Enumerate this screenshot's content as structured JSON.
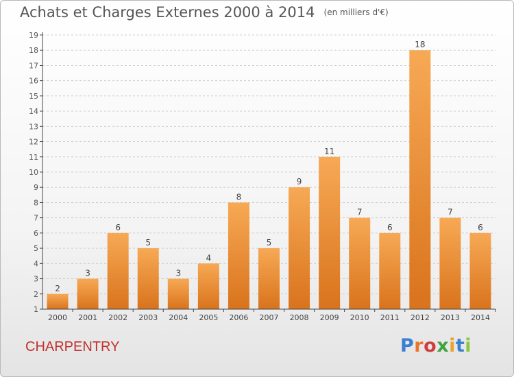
{
  "header": {
    "title": "Achats et Charges Externes 2000 à 2014",
    "subtitle": "(en milliers d'€)"
  },
  "footer": {
    "commune": "CHARPENTRY",
    "logo_text": "Proxiti"
  },
  "colors": {
    "bar_light": "#f7a955",
    "bar_dark": "#d9731c",
    "commune_text": "#c0322e",
    "axis": "#444444",
    "gridline": "#cfcfcf"
  },
  "chart_data": {
    "type": "bar",
    "title": "Achats et Charges Externes 2000 à 2014",
    "subtitle": "(en milliers d'€)",
    "categories": [
      "2000",
      "2001",
      "2002",
      "2003",
      "2004",
      "2005",
      "2006",
      "2007",
      "2008",
      "2009",
      "2010",
      "2011",
      "2012",
      "2013",
      "2014"
    ],
    "values": [
      2,
      3,
      6,
      5,
      3,
      4,
      8,
      5,
      9,
      11,
      7,
      6,
      18,
      7,
      6
    ],
    "ylim": [
      1,
      19
    ],
    "yticks": [
      1,
      2,
      3,
      4,
      5,
      6,
      7,
      8,
      9,
      10,
      11,
      12,
      13,
      14,
      15,
      16,
      17,
      18,
      19
    ],
    "grid": "horizontal dashed",
    "data_labels": true
  }
}
